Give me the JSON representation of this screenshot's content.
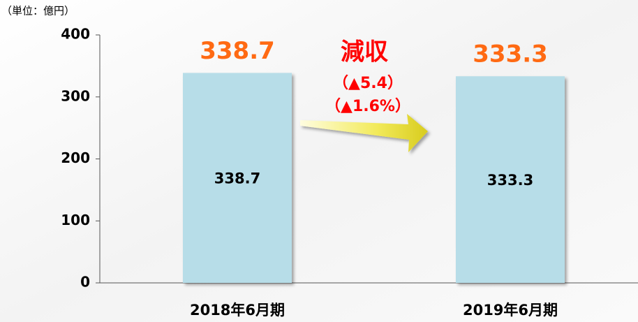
{
  "chart_data": {
    "type": "bar",
    "unit_label": "（単位：億円）",
    "categories": [
      "2018年6月期",
      "2019年6月期"
    ],
    "values": [
      338.7,
      333.3
    ],
    "color": "#b7dde8",
    "label_color": "#ff6a13",
    "ylim": [
      0,
      400
    ],
    "yticks": [
      0,
      100,
      200,
      300,
      400
    ],
    "annotations": [
      "減収",
      "（▲5.4）",
      "（▲1.6%）"
    ]
  }
}
